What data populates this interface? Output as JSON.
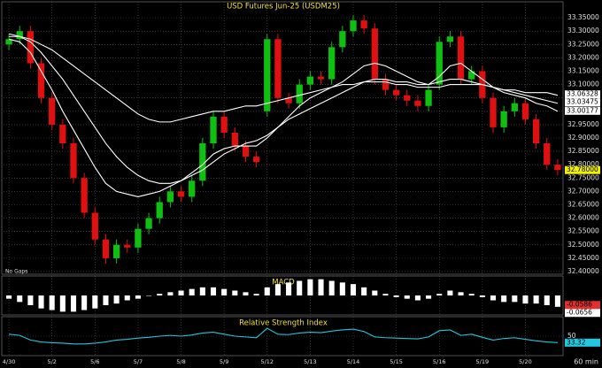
{
  "chart_data": [
    {
      "type": "candlestick",
      "title": "USD Futures Jun-25 (USDM25)",
      "note": "No Gaps",
      "categories": [
        "4/30",
        null,
        null,
        null,
        "5/2",
        null,
        null,
        null,
        "5/6",
        null,
        null,
        null,
        "5/7",
        null,
        null,
        null,
        "5/8",
        null,
        null,
        null,
        "5/9",
        null,
        null,
        null,
        "5/12",
        null,
        null,
        null,
        "5/13",
        null,
        null,
        null,
        "5/14",
        null,
        null,
        null,
        "5/15",
        null,
        null,
        null,
        "5/16",
        null,
        null,
        null,
        "5/19",
        null,
        null,
        null,
        "5/20",
        null,
        null,
        null
      ],
      "open": [
        33.25,
        33.27,
        33.3,
        33.18,
        33.05,
        32.95,
        32.88,
        32.75,
        32.62,
        32.52,
        32.45,
        32.5,
        32.49,
        32.56,
        32.6,
        32.66,
        32.7,
        32.68,
        32.74,
        32.88,
        32.98,
        32.92,
        32.87,
        32.83,
        33.0,
        33.27,
        33.05,
        33.03,
        33.1,
        33.13,
        33.12,
        33.24,
        33.3,
        33.34,
        33.31,
        33.12,
        33.08,
        33.06,
        33.04,
        33.02,
        33.1,
        33.26,
        33.28,
        33.12,
        33.15,
        33.05,
        32.94,
        33.0,
        33.03,
        32.97,
        32.88,
        32.8
      ],
      "high": [
        33.29,
        33.32,
        33.32,
        33.2,
        33.07,
        32.97,
        32.9,
        32.77,
        32.64,
        32.54,
        32.52,
        32.52,
        32.58,
        32.62,
        32.68,
        32.72,
        32.72,
        32.76,
        32.9,
        33.0,
        33.0,
        32.94,
        32.89,
        32.85,
        33.29,
        33.29,
        33.07,
        33.12,
        33.15,
        33.15,
        33.26,
        33.32,
        33.36,
        33.36,
        33.33,
        33.14,
        33.1,
        33.08,
        33.06,
        33.1,
        33.28,
        33.3,
        33.3,
        33.17,
        33.17,
        33.07,
        33.02,
        33.05,
        33.05,
        32.99,
        32.9,
        32.82
      ],
      "low": [
        33.23,
        33.25,
        33.16,
        33.03,
        32.93,
        32.86,
        32.73,
        32.6,
        32.5,
        32.43,
        32.43,
        32.47,
        32.47,
        32.54,
        32.58,
        32.64,
        32.66,
        32.66,
        32.72,
        32.86,
        32.9,
        32.85,
        32.81,
        32.79,
        32.98,
        33.03,
        33.01,
        33.01,
        33.08,
        33.1,
        33.1,
        33.22,
        33.28,
        33.29,
        33.1,
        33.06,
        33.04,
        33.02,
        33.0,
        33.0,
        33.08,
        33.24,
        33.1,
        33.1,
        33.03,
        32.92,
        32.92,
        32.98,
        32.95,
        32.86,
        32.78,
        32.76
      ],
      "close": [
        33.27,
        33.3,
        33.18,
        33.05,
        32.95,
        32.88,
        32.75,
        32.62,
        32.52,
        32.45,
        32.5,
        32.49,
        32.56,
        32.6,
        32.66,
        32.7,
        32.68,
        32.74,
        32.88,
        32.98,
        32.92,
        32.87,
        32.83,
        32.81,
        33.27,
        33.05,
        33.03,
        33.1,
        33.13,
        33.12,
        33.24,
        33.3,
        33.34,
        33.31,
        33.12,
        33.08,
        33.06,
        33.04,
        33.02,
        33.08,
        33.26,
        33.28,
        33.12,
        33.15,
        33.05,
        32.94,
        33.0,
        33.03,
        32.97,
        32.88,
        32.8,
        32.78
      ],
      "up_color": "#10c010",
      "down_color": "#e01010",
      "lines": [
        {
          "color": "#ffffff",
          "values": [
            33.27,
            33.26,
            33.22,
            33.15,
            33.08,
            33.0,
            32.93,
            32.86,
            32.79,
            32.73,
            32.7,
            32.69,
            32.68,
            32.69,
            32.7,
            32.72,
            32.74,
            32.77,
            32.8,
            32.84,
            32.86,
            32.87,
            32.87,
            32.87,
            32.9,
            32.94,
            32.98,
            33.02,
            33.05,
            33.07,
            33.09,
            33.11,
            33.14,
            33.17,
            33.18,
            33.17,
            33.15,
            33.13,
            33.11,
            33.1,
            33.13,
            33.17,
            33.18,
            33.15,
            33.12,
            33.09,
            33.07,
            33.06,
            33.05,
            33.03,
            33.02,
            33.0
          ]
        },
        {
          "color": "#ffffff",
          "values": [
            33.28,
            33.28,
            33.26,
            33.22,
            33.17,
            33.12,
            33.06,
            33.0,
            32.94,
            32.88,
            32.83,
            32.79,
            32.76,
            32.74,
            32.73,
            32.73,
            32.74,
            32.76,
            32.78,
            32.81,
            32.84,
            32.86,
            32.88,
            32.89,
            32.91,
            32.94,
            32.97,
            32.99,
            33.01,
            33.03,
            33.05,
            33.07,
            33.09,
            33.11,
            33.12,
            33.12,
            33.11,
            33.11,
            33.1,
            33.1,
            33.11,
            33.12,
            33.12,
            33.11,
            33.1,
            33.09,
            33.08,
            33.07,
            33.06,
            33.05,
            33.04,
            33.03
          ]
        },
        {
          "color": "#ffffff",
          "values": [
            33.29,
            33.28,
            33.27,
            33.25,
            33.23,
            33.2,
            33.17,
            33.14,
            33.11,
            33.08,
            33.05,
            33.02,
            32.99,
            32.97,
            32.96,
            32.96,
            32.97,
            32.98,
            32.99,
            33.0,
            33.0,
            33.01,
            33.02,
            33.02,
            33.03,
            33.04,
            33.05,
            33.06,
            33.07,
            33.08,
            33.09,
            33.1,
            33.1,
            33.11,
            33.11,
            33.11,
            33.1,
            33.1,
            33.09,
            33.09,
            33.09,
            33.1,
            33.1,
            33.1,
            33.1,
            33.09,
            33.08,
            33.08,
            33.07,
            33.07,
            33.07,
            33.06
          ]
        }
      ],
      "price_tags": [
        33.06328,
        33.03475,
        33.00177,
        {
          "value": 32.78,
          "label": "32.78000"
        }
      ],
      "ylim": [
        32.39,
        33.41
      ],
      "yticks": [
        {
          "value": 32.4,
          "label": "32.40000"
        },
        {
          "value": 32.45,
          "label": "32.45000"
        },
        {
          "value": 32.5,
          "label": "32.50000"
        },
        {
          "value": 32.55,
          "label": "32.55000"
        },
        {
          "value": 32.6,
          "label": "32.60000"
        },
        {
          "value": 32.65,
          "label": "32.65000"
        },
        {
          "value": 32.7,
          "label": "32.70000"
        },
        {
          "value": 32.75,
          "label": "32.75000"
        },
        {
          "value": 32.8,
          "label": "32.80000"
        },
        {
          "value": 32.85,
          "label": "32.85000"
        },
        {
          "value": 32.9,
          "label": "32.90000"
        },
        {
          "value": 32.95,
          "label": "32.95000"
        },
        {
          "value": 33.0,
          "label": "33.00000"
        },
        {
          "value": 33.05,
          "label": "33.05000"
        },
        {
          "value": 33.1,
          "label": "33.10000"
        },
        {
          "value": 33.15,
          "label": "33.15000"
        },
        {
          "value": 33.2,
          "label": "33.20000"
        },
        {
          "value": 33.25,
          "label": "33.25000"
        },
        {
          "value": 33.3,
          "label": "33.30000"
        },
        {
          "value": 33.35,
          "label": "33.35000"
        }
      ],
      "grid": true
    },
    {
      "type": "bar",
      "title": "MACD",
      "color": "#ffffff",
      "values": [
        -0.02,
        -0.04,
        -0.06,
        -0.08,
        -0.09,
        -0.1,
        -0.1,
        -0.09,
        -0.08,
        -0.06,
        -0.05,
        -0.03,
        -0.02,
        0.0,
        0.01,
        0.02,
        0.03,
        0.04,
        0.05,
        0.05,
        0.04,
        0.03,
        0.02,
        0.01,
        0.05,
        0.07,
        0.08,
        0.09,
        0.1,
        0.1,
        0.09,
        0.08,
        0.07,
        0.05,
        0.03,
        0.01,
        -0.01,
        -0.02,
        -0.03,
        -0.02,
        0.01,
        0.03,
        0.02,
        0.01,
        -0.01,
        -0.03,
        -0.04,
        -0.04,
        -0.05,
        -0.05,
        -0.06,
        -0.07
      ],
      "price_tags": [
        -0.0586,
        -0.0656
      ],
      "ylim": [
        -0.12,
        0.12
      ]
    },
    {
      "type": "line",
      "title": "Relative Strength Index",
      "color": "#20c8e0",
      "values": [
        55,
        52,
        40,
        35,
        33,
        32,
        30,
        30,
        32,
        35,
        40,
        42,
        45,
        47,
        50,
        52,
        50,
        53,
        58,
        60,
        55,
        50,
        48,
        46,
        70,
        55,
        54,
        58,
        60,
        59,
        63,
        66,
        68,
        62,
        48,
        46,
        45,
        44,
        43,
        48,
        64,
        66,
        52,
        55,
        47,
        40,
        44,
        46,
        42,
        38,
        35,
        33.32
      ],
      "price_tags": [
        33.32
      ],
      "ylim": [
        0,
        100
      ],
      "yticks": [
        50
      ],
      "grid": true
    }
  ],
  "interval": "60 min"
}
